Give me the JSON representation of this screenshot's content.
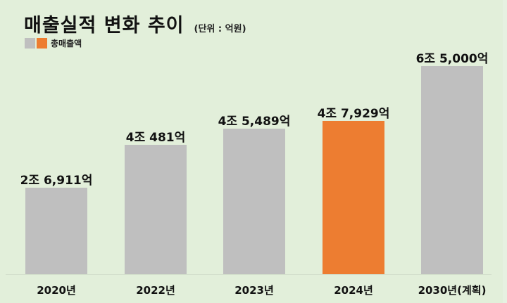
{
  "header": {
    "title": "매출실적 변화 추이",
    "unit": "(단위 : 억원)"
  },
  "legend": {
    "label": "총매출액",
    "colors": [
      "#bfbfbf",
      "#ed7d31"
    ]
  },
  "colors": {
    "background": "#e2efda",
    "bar_default": "#bfbfbf",
    "bar_highlight": "#ed7d31"
  },
  "chart_data": {
    "type": "bar",
    "title": "매출실적 변화 추이",
    "subtitle": "(단위 : 억원)",
    "xlabel": "",
    "ylabel": "억원",
    "categories": [
      "2020년",
      "2022년",
      "2023년",
      "2024년",
      "2030년(계획)"
    ],
    "series": [
      {
        "name": "총매출액",
        "values": [
          26911,
          40481,
          45489,
          47929,
          65000
        ],
        "labels": [
          "2조 6,911억",
          "4조 481억",
          "4조 5,489억",
          "4조 7,929억",
          "6조 5,000억"
        ],
        "colors": [
          "#bfbfbf",
          "#bfbfbf",
          "#bfbfbf",
          "#ed7d31",
          "#bfbfbf"
        ]
      }
    ],
    "highlight_index": 3,
    "grid": false,
    "legend_position": "top-left",
    "ylim": [
      0,
      65000
    ]
  }
}
